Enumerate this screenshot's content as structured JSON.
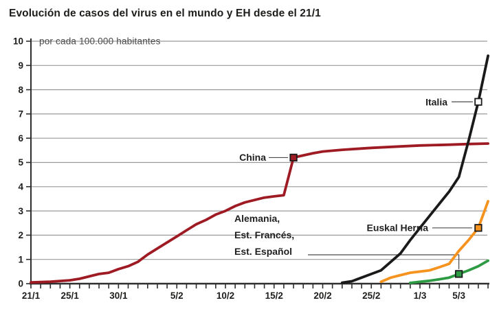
{
  "title": "Evolución de casos del virus en el mundo y EH desde el 21/1",
  "chart_data": {
    "type": "line",
    "unit_label": "por cada 100.000 habitantes",
    "ylim": [
      0,
      10
    ],
    "y_ticks": [
      0,
      1,
      2,
      3,
      4,
      5,
      6,
      7,
      8,
      9,
      10
    ],
    "x_start_date": "21/1",
    "x_total_days": 47,
    "x_tick_labels": [
      {
        "day": 0,
        "label": "21/1"
      },
      {
        "day": 4,
        "label": "25/1"
      },
      {
        "day": 9,
        "label": "30/1"
      },
      {
        "day": 15,
        "label": "5/2"
      },
      {
        "day": 20,
        "label": "10/2"
      },
      {
        "day": 25,
        "label": "15/2"
      },
      {
        "day": 30,
        "label": "20/2"
      },
      {
        "day": 35,
        "label": "25/2"
      },
      {
        "day": 40,
        "label": "1/3"
      },
      {
        "day": 44,
        "label": "5/3"
      }
    ],
    "grid": true,
    "legend_position": "inline-annotations",
    "series": [
      {
        "id": "china",
        "name": "China",
        "color": "#9e1b24",
        "marker": {
          "day": 27,
          "value": 5.2,
          "fill": "#9e1b24"
        },
        "points": [
          [
            0,
            0.05
          ],
          [
            2,
            0.08
          ],
          [
            4,
            0.14
          ],
          [
            5,
            0.2
          ],
          [
            6,
            0.3
          ],
          [
            7,
            0.4
          ],
          [
            8,
            0.45
          ],
          [
            9,
            0.6
          ],
          [
            10,
            0.72
          ],
          [
            11,
            0.9
          ],
          [
            12,
            1.2
          ],
          [
            13,
            1.45
          ],
          [
            14,
            1.7
          ],
          [
            15,
            1.95
          ],
          [
            16,
            2.2
          ],
          [
            17,
            2.45
          ],
          [
            18,
            2.63
          ],
          [
            19,
            2.85
          ],
          [
            20,
            3.0
          ],
          [
            21,
            3.2
          ],
          [
            22,
            3.35
          ],
          [
            23,
            3.45
          ],
          [
            24,
            3.55
          ],
          [
            25,
            3.6
          ],
          [
            26,
            3.65
          ],
          [
            27,
            5.2
          ],
          [
            29,
            5.38
          ],
          [
            30,
            5.45
          ],
          [
            32,
            5.52
          ],
          [
            35,
            5.6
          ],
          [
            38,
            5.66
          ],
          [
            40,
            5.7
          ],
          [
            43,
            5.73
          ],
          [
            45,
            5.76
          ],
          [
            47,
            5.78
          ]
        ]
      },
      {
        "id": "italia",
        "name": "Italia",
        "color": "#1a1a1a",
        "marker": {
          "day": 46,
          "value": 7.5,
          "fill": "#ffffff"
        },
        "points": [
          [
            32,
            0.04
          ],
          [
            33,
            0.1
          ],
          [
            34,
            0.25
          ],
          [
            35,
            0.4
          ],
          [
            36,
            0.55
          ],
          [
            37,
            0.9
          ],
          [
            38,
            1.25
          ],
          [
            39,
            1.8
          ],
          [
            40,
            2.3
          ],
          [
            41,
            2.8
          ],
          [
            42,
            3.3
          ],
          [
            43,
            3.8
          ],
          [
            44,
            4.4
          ],
          [
            45,
            5.9
          ],
          [
            46,
            7.5
          ],
          [
            47,
            9.4
          ]
        ]
      },
      {
        "id": "euskal-herria",
        "name": "Euskal Herria",
        "color": "#f6921e",
        "marker": {
          "day": 46,
          "value": 2.3,
          "fill": "#f6921e"
        },
        "points": [
          [
            36,
            0.08
          ],
          [
            37,
            0.25
          ],
          [
            38,
            0.35
          ],
          [
            39,
            0.45
          ],
          [
            40,
            0.5
          ],
          [
            41,
            0.55
          ],
          [
            42,
            0.68
          ],
          [
            43,
            0.82
          ],
          [
            44,
            1.35
          ],
          [
            45,
            1.8
          ],
          [
            46,
            2.3
          ],
          [
            47,
            3.4
          ]
        ]
      },
      {
        "id": "alemania-francia-espana",
        "name": "Alemania, Est. Francés, Est. Español",
        "color": "#2d9b43",
        "marker": {
          "day": 44,
          "value": 0.4,
          "fill": "#2d9b43"
        },
        "points": [
          [
            39,
            0.03
          ],
          [
            40,
            0.08
          ],
          [
            41,
            0.12
          ],
          [
            42,
            0.18
          ],
          [
            43,
            0.25
          ],
          [
            44,
            0.4
          ],
          [
            45,
            0.55
          ],
          [
            46,
            0.72
          ],
          [
            47,
            0.95
          ]
        ]
      }
    ],
    "annotations": [
      {
        "id": "china",
        "text": "China"
      },
      {
        "id": "italia",
        "text": "Italia"
      },
      {
        "id": "euskal-herria",
        "text": "Euskal Herria"
      },
      {
        "id": "alemania-francia-espana",
        "lines": [
          "Alemania,",
          "Est. Francés,",
          "Est. Español"
        ]
      }
    ]
  },
  "colors": {
    "china_line": "#9e1b24",
    "italia_line": "#1a1a1a",
    "euskal_herria_line": "#f6921e",
    "alemania_line": "#2d9b43",
    "gridline": "#999999",
    "axis": "#2e2e2e",
    "text": "#1d1d1b",
    "unit_label_text": "#4a4a4a",
    "leader_line": "#4a4a4a",
    "background": "#ffffff"
  }
}
